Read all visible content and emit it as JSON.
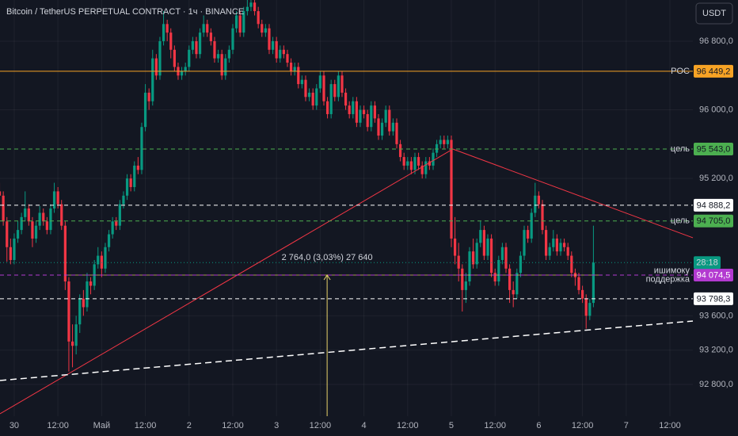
{
  "chart_data": {
    "type": "candlestick",
    "title": "Bitcoin / TetherUS PERPETUAL CONTRACT · 1ч · BINANCE",
    "currency_button": "USDT",
    "up_color": "#089981",
    "down_color": "#f23645",
    "grid": true,
    "xlim": [
      -3.9,
      186.3
    ],
    "ylim": [
      92430,
      97280
    ],
    "xticks": [
      {
        "value": 0,
        "label": "30"
      },
      {
        "value": 12,
        "label": "12:00"
      },
      {
        "value": 24,
        "label": "Май"
      },
      {
        "value": 36,
        "label": "12:00"
      },
      {
        "value": 48,
        "label": "2"
      },
      {
        "value": 60,
        "label": "12:00"
      },
      {
        "value": 72,
        "label": "3"
      },
      {
        "value": 84,
        "label": "12:00"
      },
      {
        "value": 96,
        "label": "4"
      },
      {
        "value": 108,
        "label": "12:00"
      },
      {
        "value": 120,
        "label": "5"
      },
      {
        "value": 132,
        "label": "12:00"
      },
      {
        "value": 144,
        "label": "6"
      },
      {
        "value": 156,
        "label": "12:00"
      },
      {
        "value": 168,
        "label": "7"
      },
      {
        "value": 180,
        "label": "12:00"
      }
    ],
    "yticks": [
      {
        "value": 96800,
        "label": "96 800,0"
      },
      {
        "value": 96000,
        "label": "96 000,0"
      },
      {
        "value": 95200,
        "label": "95 200,0"
      },
      {
        "value": 93600,
        "label": "93 600,0"
      },
      {
        "value": 93200,
        "label": "93 200,0"
      },
      {
        "value": 92800,
        "label": "92 800,0"
      }
    ],
    "x": [
      -4,
      -3,
      -2,
      -1,
      0,
      1,
      2,
      3,
      4,
      5,
      6,
      7,
      8,
      9,
      10,
      11,
      12,
      13,
      14,
      15,
      16,
      17,
      18,
      19,
      20,
      21,
      22,
      23,
      24,
      25,
      26,
      27,
      28,
      29,
      30,
      31,
      32,
      33,
      34,
      35,
      36,
      37,
      38,
      39,
      40,
      41,
      42,
      43,
      44,
      45,
      46,
      47,
      48,
      49,
      50,
      51,
      52,
      53,
      54,
      55,
      56,
      57,
      58,
      59,
      60,
      61,
      62,
      63,
      64,
      65,
      66,
      67,
      68,
      69,
      70,
      71,
      72,
      73,
      74,
      75,
      76,
      77,
      78,
      79,
      80,
      81,
      82,
      83,
      84,
      85,
      86,
      87,
      88,
      89,
      90,
      91,
      92,
      93,
      94,
      95,
      96,
      97,
      98,
      99,
      100,
      101,
      102,
      103,
      104,
      105,
      106,
      107,
      108,
      109,
      110,
      111,
      112,
      113,
      114,
      115,
      116,
      117,
      118,
      119,
      120,
      121,
      122,
      123,
      124,
      125,
      126,
      127,
      128,
      129,
      130,
      131,
      132,
      133,
      134,
      135,
      136,
      137,
      138,
      139,
      140,
      141,
      142,
      143,
      144,
      145,
      146,
      147,
      148,
      149,
      150,
      151,
      152,
      153,
      154,
      155,
      156,
      157,
      158,
      159
    ],
    "ohlc": [
      [
        95050,
        95150,
        94850,
        95000
      ],
      [
        95000,
        95050,
        94650,
        94700
      ],
      [
        94700,
        94750,
        94230,
        94400
      ],
      [
        94400,
        94500,
        94200,
        94250
      ],
      [
        94250,
        94560,
        94200,
        94500
      ],
      [
        94500,
        94700,
        94450,
        94600
      ],
      [
        94600,
        94800,
        94550,
        94750
      ],
      [
        94750,
        95050,
        94700,
        94850
      ],
      [
        94850,
        94900,
        94650,
        94700
      ],
      [
        94700,
        94750,
        94400,
        94500
      ],
      [
        94500,
        94700,
        94450,
        94650
      ],
      [
        94650,
        94880,
        94600,
        94800
      ],
      [
        94800,
        94850,
        94650,
        94700
      ],
      [
        94700,
        94750,
        94550,
        94600
      ],
      [
        94600,
        94900,
        94550,
        94850
      ],
      [
        94850,
        95150,
        94800,
        95050
      ],
      [
        95050,
        95100,
        94850,
        94900
      ],
      [
        94900,
        94950,
        94600,
        94650
      ],
      [
        94650,
        94700,
        93900,
        94000
      ],
      [
        94000,
        94050,
        92950,
        93300
      ],
      [
        93300,
        93500,
        93000,
        93250
      ],
      [
        93250,
        93600,
        93150,
        93500
      ],
      [
        93500,
        93850,
        93400,
        93800
      ],
      [
        93800,
        93900,
        93600,
        93700
      ],
      [
        93700,
        94100,
        93650,
        94000
      ],
      [
        94000,
        94050,
        93850,
        93950
      ],
      [
        93950,
        94250,
        93900,
        94200
      ],
      [
        94200,
        94400,
        94150,
        94300
      ],
      [
        94300,
        94350,
        94050,
        94150
      ],
      [
        94150,
        94450,
        94100,
        94400
      ],
      [
        94400,
        94600,
        94350,
        94550
      ],
      [
        94550,
        94750,
        94500,
        94700
      ],
      [
        94700,
        94750,
        94600,
        94650
      ],
      [
        94650,
        94950,
        94600,
        94900
      ],
      [
        94900,
        95050,
        94850,
        95000
      ],
      [
        95000,
        95250,
        94950,
        95200
      ],
      [
        95200,
        95250,
        95050,
        95100
      ],
      [
        95100,
        95400,
        95050,
        95350
      ],
      [
        95350,
        95450,
        95250,
        95300
      ],
      [
        95300,
        95850,
        95250,
        95800
      ],
      [
        95800,
        96300,
        95750,
        96200
      ],
      [
        96200,
        96250,
        96000,
        96100
      ],
      [
        96100,
        96700,
        96050,
        96600
      ],
      [
        96600,
        96650,
        96350,
        96400
      ],
      [
        96400,
        96850,
        96350,
        96800
      ],
      [
        96800,
        97150,
        96750,
        97000
      ],
      [
        97000,
        97050,
        96800,
        96900
      ],
      [
        96900,
        96950,
        96600,
        96700
      ],
      [
        96700,
        96750,
        96450,
        96500
      ],
      [
        96500,
        96550,
        96350,
        96400
      ],
      [
        96400,
        96500,
        96350,
        96450
      ],
      [
        96450,
        96550,
        96400,
        96500
      ],
      [
        96500,
        96750,
        96450,
        96700
      ],
      [
        96700,
        96850,
        96650,
        96800
      ],
      [
        96800,
        96850,
        96600,
        96650
      ],
      [
        96650,
        96950,
        96600,
        96900
      ],
      [
        96900,
        97100,
        96850,
        97000
      ],
      [
        97000,
        97050,
        96850,
        96900
      ],
      [
        96900,
        96950,
        96750,
        96800
      ],
      [
        96800,
        96850,
        96550,
        96600
      ],
      [
        96600,
        96700,
        96550,
        96650
      ],
      [
        96650,
        96700,
        96350,
        96400
      ],
      [
        96400,
        96650,
        96350,
        96600
      ],
      [
        96600,
        96750,
        96550,
        96700
      ],
      [
        96700,
        97000,
        96650,
        96950
      ],
      [
        96950,
        97150,
        96900,
        97100
      ],
      [
        97100,
        97150,
        96850,
        96900
      ],
      [
        96900,
        97200,
        96850,
        97150
      ],
      [
        97150,
        97280,
        97100,
        97200
      ],
      [
        97200,
        97280,
        97150,
        97250
      ],
      [
        97250,
        97280,
        97100,
        97150
      ],
      [
        97150,
        97200,
        96950,
        97000
      ],
      [
        97000,
        97050,
        96850,
        96900
      ],
      [
        96900,
        97000,
        96850,
        96950
      ],
      [
        96950,
        97000,
        96650,
        96700
      ],
      [
        96700,
        96850,
        96650,
        96800
      ],
      [
        96800,
        96850,
        96550,
        96600
      ],
      [
        96600,
        96750,
        96550,
        96700
      ],
      [
        96700,
        96750,
        96600,
        96650
      ],
      [
        96650,
        96700,
        96500,
        96550
      ],
      [
        96550,
        96600,
        96400,
        96450
      ],
      [
        96450,
        96550,
        96400,
        96500
      ],
      [
        96500,
        96550,
        96250,
        96300
      ],
      [
        96300,
        96400,
        96250,
        96350
      ],
      [
        96350,
        96400,
        96100,
        96150
      ],
      [
        96150,
        96250,
        96100,
        96200
      ],
      [
        96200,
        96250,
        96000,
        96050
      ],
      [
        96050,
        96300,
        96000,
        96250
      ],
      [
        96250,
        96450,
        96200,
        96400
      ],
      [
        96400,
        96450,
        96050,
        96100
      ],
      [
        96100,
        96150,
        95900,
        95950
      ],
      [
        95950,
        96350,
        95900,
        96300
      ],
      [
        96300,
        96350,
        96100,
        96150
      ],
      [
        96150,
        96450,
        96100,
        96400
      ],
      [
        96400,
        96450,
        96150,
        96200
      ],
      [
        96200,
        96250,
        96000,
        96050
      ],
      [
        96050,
        96100,
        95900,
        95950
      ],
      [
        95950,
        96150,
        95900,
        96100
      ],
      [
        96100,
        96150,
        95800,
        95850
      ],
      [
        95850,
        96050,
        95800,
        96000
      ],
      [
        96000,
        96050,
        95900,
        95950
      ],
      [
        95950,
        96000,
        95750,
        95800
      ],
      [
        95800,
        96100,
        95750,
        96050
      ],
      [
        96050,
        96100,
        95850,
        95900
      ],
      [
        95900,
        95950,
        95650,
        95700
      ],
      [
        95700,
        95900,
        95650,
        95850
      ],
      [
        95850,
        96050,
        95800,
        96000
      ],
      [
        96000,
        96050,
        95700,
        95750
      ],
      [
        95750,
        95900,
        95700,
        95850
      ],
      [
        95850,
        95900,
        95550,
        95600
      ],
      [
        95600,
        95650,
        95400,
        95450
      ],
      [
        95450,
        95500,
        95300,
        95350
      ],
      [
        95350,
        95450,
        95300,
        95400
      ],
      [
        95400,
        95450,
        95250,
        95300
      ],
      [
        95300,
        95500,
        95250,
        95450
      ],
      [
        95450,
        95500,
        95300,
        95350
      ],
      [
        95350,
        95400,
        95200,
        95250
      ],
      [
        95250,
        95450,
        95200,
        95400
      ],
      [
        95400,
        95450,
        95300,
        95350
      ],
      [
        95350,
        95550,
        95300,
        95500
      ],
      [
        95500,
        95650,
        95450,
        95600
      ],
      [
        95600,
        95700,
        95550,
        95650
      ],
      [
        95650,
        95700,
        95550,
        95600
      ],
      [
        95600,
        95700,
        95550,
        95650
      ],
      [
        95650,
        95700,
        94400,
        94500
      ],
      [
        94500,
        94750,
        94200,
        94300
      ],
      [
        94300,
        94450,
        94000,
        94150
      ],
      [
        94150,
        94200,
        93650,
        93900
      ],
      [
        93900,
        94100,
        93750,
        94000
      ],
      [
        94000,
        94400,
        93950,
        94350
      ],
      [
        94350,
        94500,
        94150,
        94200
      ],
      [
        94200,
        94500,
        94150,
        94450
      ],
      [
        94450,
        94700,
        94400,
        94600
      ],
      [
        94600,
        94650,
        94250,
        94300
      ],
      [
        94300,
        94550,
        94250,
        94500
      ],
      [
        94500,
        94550,
        94050,
        94100
      ],
      [
        94100,
        94150,
        93950,
        94000
      ],
      [
        94000,
        94300,
        93950,
        94250
      ],
      [
        94250,
        94450,
        94200,
        94400
      ],
      [
        94400,
        94450,
        94100,
        94150
      ],
      [
        94150,
        94200,
        93750,
        93900
      ],
      [
        93900,
        94000,
        93700,
        93850
      ],
      [
        93850,
        94150,
        93800,
        94100
      ],
      [
        94100,
        94350,
        94050,
        94300
      ],
      [
        94300,
        94650,
        94250,
        94600
      ],
      [
        94600,
        94650,
        94450,
        94500
      ],
      [
        94500,
        94850,
        94450,
        94800
      ],
      [
        94800,
        95150,
        94750,
        95000
      ],
      [
        95000,
        95050,
        94850,
        94900
      ],
      [
        94900,
        94950,
        94550,
        94600
      ],
      [
        94600,
        94650,
        94250,
        94300
      ],
      [
        94300,
        94450,
        94250,
        94400
      ],
      [
        94400,
        94600,
        94350,
        94500
      ],
      [
        94500,
        94550,
        94300,
        94350
      ],
      [
        94350,
        94500,
        94300,
        94450
      ],
      [
        94450,
        94500,
        94350,
        94400
      ],
      [
        94400,
        94450,
        94250,
        94300
      ],
      [
        94300,
        94350,
        94050,
        94100
      ],
      [
        94100,
        94150,
        93950,
        94050
      ],
      [
        94050,
        94100,
        93850,
        93900
      ],
      [
        93900,
        93950,
        93750,
        93800
      ],
      [
        93800,
        93850,
        93450,
        93600
      ],
      [
        93600,
        93800,
        93550,
        93750
      ],
      [
        93750,
        94650,
        93700,
        94220
      ]
    ],
    "countdown": "28:18",
    "levels": [
      {
        "value": 96449.2,
        "label": "96 449,2",
        "color": "#f7a325",
        "text_color": "#131722",
        "dashed": false,
        "text": [
          "POC"
        ]
      },
      {
        "value": 95543.0,
        "label": "95 543,0",
        "color": "#4caf50",
        "text_color": "#131722",
        "dashed": true,
        "text": [
          "цель"
        ]
      },
      {
        "value": 94888.2,
        "label": "94 888,2",
        "color": "#ffffff",
        "text_color": "#131722",
        "dashed": true
      },
      {
        "value": 94705.0,
        "label": "94 705,0",
        "color": "#4caf50",
        "text_color": "#131722",
        "dashed": true,
        "text": [
          "цель"
        ]
      },
      {
        "value": 94074.5,
        "label": "94 074,5",
        "color": "#b33ad0",
        "text_color": "#ffffff",
        "dashed": true,
        "text": [
          "ишимоку",
          "поддержка"
        ]
      },
      {
        "value": 93798.3,
        "label": "93 798,3",
        "color": "#ffffff",
        "text_color": "#131722",
        "dashed": true
      }
    ],
    "trendlines": [
      {
        "color": "#f23645",
        "dashed": false,
        "x": [
          -3.9,
          120.4
        ],
        "y": [
          92458,
          95543
        ]
      },
      {
        "color": "#f23645",
        "dashed": false,
        "x": [
          120.4,
          186.3
        ],
        "y": [
          95543,
          94509
        ]
      },
      {
        "color": "#ffffff",
        "dashed": true,
        "x": [
          -3.9,
          186.3
        ],
        "y": [
          92846,
          93539
        ]
      }
    ],
    "measure": {
      "label": "2 764,0 (3,03%) 27 640",
      "color": "#e8d36a",
      "x": 85.9,
      "y": [
        92430,
        94074.5
      ],
      "span_x": [
        14.1,
        161.3
      ]
    }
  }
}
